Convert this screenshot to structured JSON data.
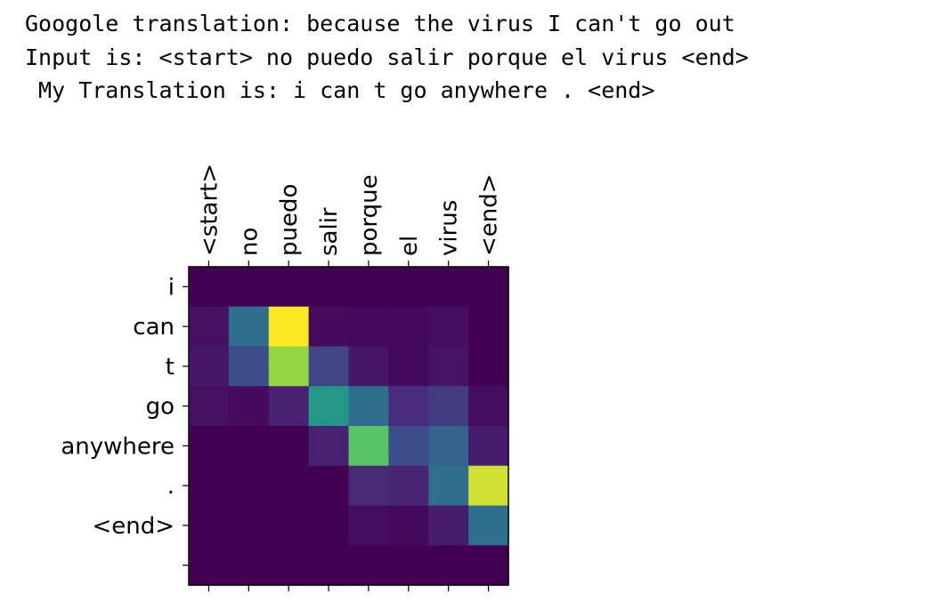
{
  "output": {
    "google_line": "Googole translation: because the virus I can't go out",
    "input_line": "Input is: <start> no puedo salir porque el virus <end>",
    "translation_line": " My Translation is: i can t go anywhere . <end>"
  },
  "chart_data": {
    "type": "heatmap",
    "title": "",
    "xlabel": "",
    "ylabel": "",
    "colormap": "viridis",
    "vmin": 0,
    "vmax": 1,
    "x_tick_labels": [
      "<start>",
      "no",
      "puedo",
      "salir",
      "porque",
      "el",
      "virus",
      "<end>"
    ],
    "y_tick_labels": [
      "i",
      "can",
      "t",
      "go",
      "anywhere",
      ".",
      "<end>",
      ""
    ],
    "values": [
      [
        0.0,
        0.0,
        0.0,
        0.0,
        0.0,
        0.0,
        0.0,
        0.0
      ],
      [
        0.06,
        0.45,
        1.0,
        0.04,
        0.03,
        0.03,
        0.05,
        0.0
      ],
      [
        0.08,
        0.3,
        0.88,
        0.25,
        0.08,
        0.03,
        0.07,
        0.0
      ],
      [
        0.06,
        0.04,
        0.12,
        0.65,
        0.45,
        0.16,
        0.22,
        0.05
      ],
      [
        0.0,
        0.0,
        0.0,
        0.12,
        0.8,
        0.3,
        0.4,
        0.1
      ],
      [
        0.0,
        0.0,
        0.0,
        0.0,
        0.15,
        0.13,
        0.45,
        0.95
      ],
      [
        0.0,
        0.0,
        0.0,
        0.0,
        0.05,
        0.03,
        0.1,
        0.45
      ],
      [
        0.0,
        0.0,
        0.0,
        0.0,
        0.0,
        0.0,
        0.0,
        0.0
      ]
    ]
  }
}
